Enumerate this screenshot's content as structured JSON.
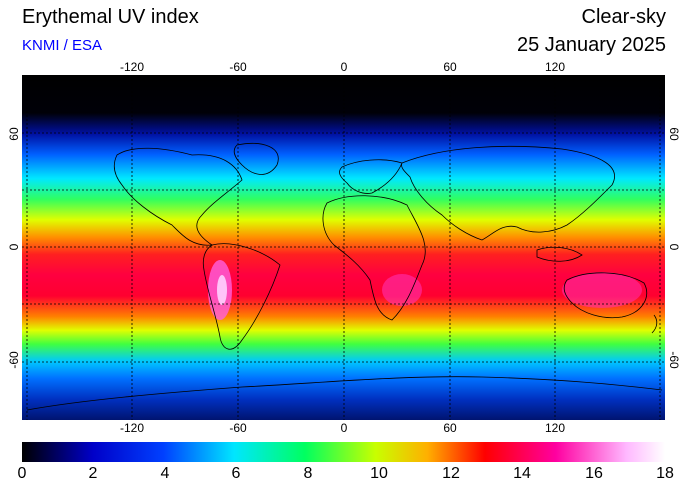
{
  "header": {
    "title": "Erythemal UV index",
    "source": "KNMI / ESA",
    "mode": "Clear-sky",
    "date": "25 January 2025"
  },
  "colors": {
    "source_text": "#0000ff"
  },
  "map": {
    "lon_ticks": [
      "-120",
      "-60",
      "0",
      "60",
      "120"
    ],
    "lat_ticks": [
      "60",
      "0",
      "-60"
    ],
    "lon_range": [
      -180,
      180
    ],
    "lat_range": [
      -90,
      90
    ],
    "gridlines": "dotted every 30 degrees"
  },
  "colorbar": {
    "labels": [
      "0",
      "2",
      "4",
      "6",
      "8",
      "10",
      "12",
      "14",
      "16",
      "18"
    ],
    "range": [
      0,
      18
    ],
    "colors": [
      "#000000",
      "#0000c8",
      "#0040ff",
      "#00e6ff",
      "#00ff60",
      "#c8ff00",
      "#ffb000",
      "#ff0000",
      "#ff00a0",
      "#ffb8ff",
      "#ffffff"
    ]
  }
}
